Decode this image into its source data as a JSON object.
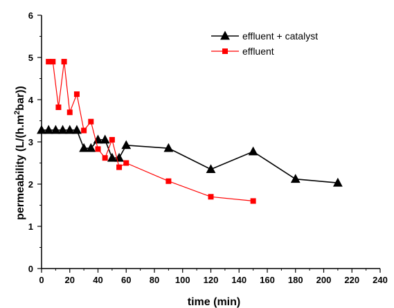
{
  "chart_data": {
    "type": "line",
    "xlabel": "time (min)",
    "ylabel_main": "permeability (L/(h.m",
    "ylabel_sup": "2",
    "ylabel_tail": "bar))",
    "xlim": [
      0,
      240
    ],
    "ylim": [
      0,
      6
    ],
    "xticks": [
      0,
      20,
      40,
      60,
      80,
      100,
      120,
      140,
      160,
      180,
      200,
      220,
      240
    ],
    "yticks": [
      0,
      1,
      2,
      3,
      4,
      5,
      6
    ],
    "grid": false,
    "legend_position": "top-right",
    "series": [
      {
        "name": "effluent + catalyst",
        "color": "#000000",
        "marker": "triangle",
        "x": [
          0,
          5,
          10,
          15,
          20,
          25,
          30,
          35,
          40,
          45,
          50,
          55,
          60,
          90,
          120,
          150,
          180,
          210
        ],
        "y": [
          3.28,
          3.28,
          3.28,
          3.28,
          3.28,
          3.28,
          2.85,
          2.85,
          3.05,
          3.05,
          2.62,
          2.62,
          2.92,
          2.85,
          2.35,
          2.77,
          2.12,
          2.03
        ]
      },
      {
        "name": "effluent",
        "color": "#ff0000",
        "marker": "square",
        "x": [
          5,
          8,
          12,
          16,
          20,
          25,
          30,
          35,
          40,
          45,
          50,
          55,
          60,
          90,
          120,
          150
        ],
        "y": [
          4.9,
          4.9,
          3.82,
          4.9,
          3.7,
          4.13,
          3.27,
          3.48,
          2.83,
          2.62,
          3.05,
          2.4,
          2.5,
          2.07,
          1.7,
          1.6
        ]
      }
    ]
  }
}
